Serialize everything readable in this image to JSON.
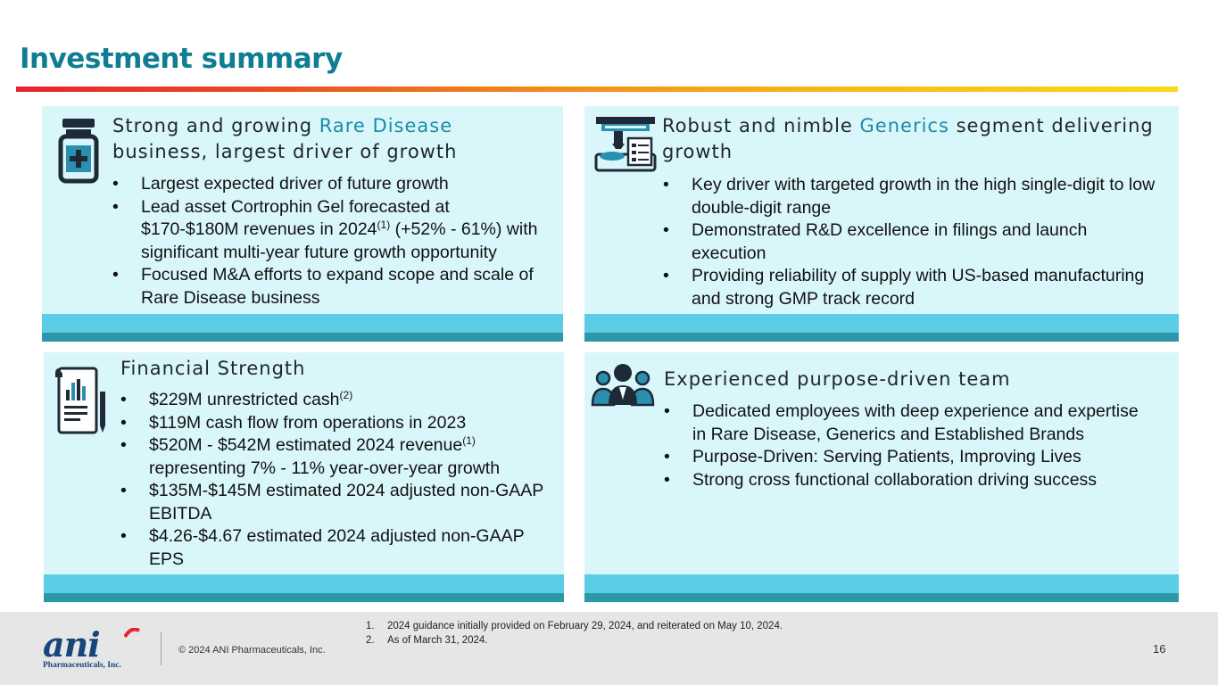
{
  "title": "Investment summary",
  "panels": {
    "rare_disease": {
      "heading_prefix": "Strong and growing ",
      "heading_accent": "Rare Disease",
      "heading_suffix": " business, largest driver of growth",
      "bullets": [
        {
          "text": "Largest expected driver of future growth"
        },
        {
          "pre": "Lead asset Cortrophin Gel forecasted at $170-$180M revenues in 2024",
          "sup": "(1)",
          "post": " (+52% - 61%) with significant multi-year future growth opportunity"
        },
        {
          "text": "Focused M&A efforts to expand scope and scale of Rare Disease business"
        }
      ]
    },
    "generics": {
      "heading_prefix": "Robust and nimble ",
      "heading_accent": "Generics",
      "heading_suffix": " segment delivering growth",
      "bullets": [
        {
          "text": "Key driver with targeted growth in the high single-digit to low double-digit range"
        },
        {
          "text": "Demonstrated R&D excellence in filings and launch execution"
        },
        {
          "text": "Providing reliability of supply with US-based manufacturing and strong GMP track record"
        }
      ]
    },
    "financial": {
      "heading": "Financial Strength",
      "bullets": [
        {
          "pre": "$229M unrestricted cash",
          "sup": "(2)",
          "post": ""
        },
        {
          "text": "$119M cash flow from operations in 2023"
        },
        {
          "pre": "$520M - $542M estimated 2024 revenue",
          "sup": "(1)",
          "post": " representing 7% - 11% year-over-year growth"
        },
        {
          "text": "$135M-$145M estimated 2024 adjusted non-GAAP EBITDA"
        },
        {
          "text": "$4.26-$4.67 estimated 2024 adjusted non-GAAP EPS"
        }
      ]
    },
    "team": {
      "heading": "Experienced purpose-driven team",
      "bullets": [
        {
          "text": "Dedicated employees with deep experience and expertise in Rare Disease, Generics and Established Brands"
        },
        {
          "text": "Purpose-Driven: Serving Patients, Improving Lives"
        },
        {
          "text": "Strong cross functional collaboration driving success"
        }
      ]
    }
  },
  "footer": {
    "logo_text": "ani",
    "logo_subtext": "Pharmaceuticals, Inc.",
    "copyright": "© 2024 ANI Pharmaceuticals, Inc.",
    "footnotes": [
      {
        "num": "1.",
        "text": "2024 guidance initially provided on February 29, 2024, and reiterated on May 10, 2024."
      },
      {
        "num": "2.",
        "text": "As of March 31, 2024."
      }
    ],
    "page_number": "16"
  },
  "colors": {
    "title": "#0f7d93",
    "panel_bg": "#d9f6fb",
    "band_light": "#5ccde6",
    "band_dark": "#2d97a8",
    "accent_text": "#1a8ca6",
    "icon_dark": "#1e2a36",
    "icon_blue": "#2b8fb0"
  },
  "icons": {
    "rare_disease": "medicine-bottle-icon",
    "generics": "manufacturing-machine-icon",
    "financial": "financial-report-icon",
    "team": "team-people-icon"
  }
}
